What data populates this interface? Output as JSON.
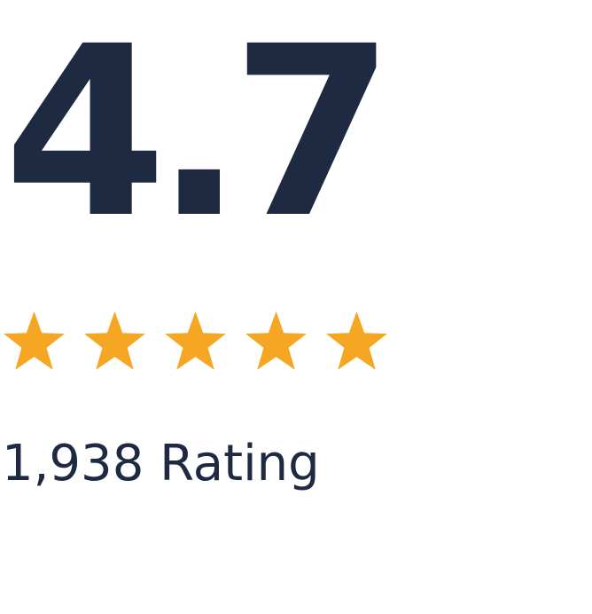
{
  "rating": {
    "score": "4.7",
    "value": 4.7,
    "max": 5,
    "stars_shown": 5,
    "count_text": "1,938 Rating"
  },
  "colors": {
    "text": "#1e2a42",
    "star": "#f5a623",
    "background": "#ffffff"
  },
  "icons": {
    "star": "star-icon"
  }
}
